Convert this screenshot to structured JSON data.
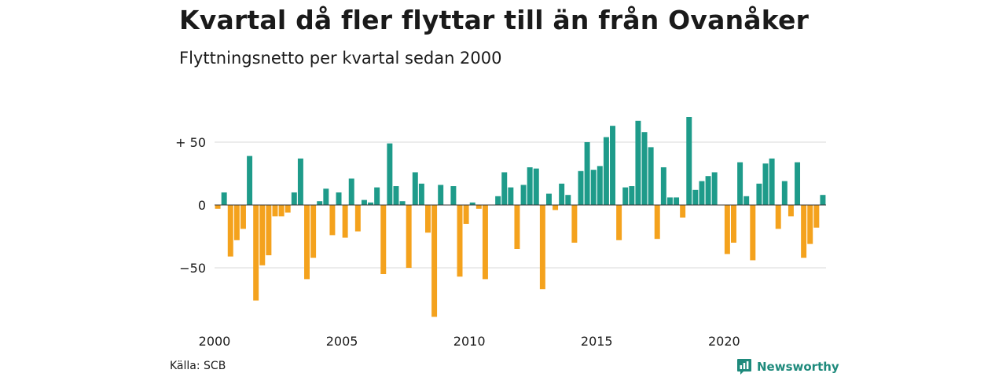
{
  "title": "Kvartal då fler flyttar till än från Ovanåker",
  "subtitle": "Flyttningsnetto per kvartal sedan 2000",
  "source": "Källa: SCB",
  "brand": "Newsworthy",
  "colors": {
    "positive": "#1e9b8a",
    "negative": "#f4a21d",
    "grid": "#d9d9d9",
    "brand": "#1e8a7c"
  },
  "chart_data": {
    "type": "bar",
    "start_year": 2000,
    "periods_per_year": 4,
    "values": [
      -3,
      10,
      -41,
      -28,
      -19,
      39,
      -76,
      -48,
      -40,
      -9,
      -9,
      -6,
      10,
      37,
      -59,
      -42,
      3,
      13,
      -24,
      10,
      -26,
      21,
      -21,
      4,
      2,
      14,
      -55,
      49,
      15,
      3,
      -50,
      26,
      17,
      -22,
      -89,
      16,
      0,
      15,
      -57,
      -15,
      2,
      -3,
      -59,
      0,
      7,
      26,
      14,
      -35,
      16,
      30,
      29,
      -67,
      9,
      -4,
      17,
      8,
      -30,
      27,
      50,
      28,
      31,
      54,
      63,
      -28,
      14,
      15,
      67,
      58,
      46,
      -27,
      30,
      6,
      6,
      -10,
      70,
      12,
      19,
      23,
      26,
      0,
      -39,
      -30,
      34,
      7,
      -44,
      17,
      33,
      37,
      -19,
      19,
      -9,
      34,
      -42,
      -31,
      -18,
      8
    ],
    "y_ticks": [
      50,
      0,
      -50
    ],
    "y_tick_labels": [
      "+ 50",
      "0",
      "−50"
    ],
    "x_tick_labels": [
      "2000",
      "2005",
      "2010",
      "2015",
      "2020"
    ],
    "ylim": [
      -92,
      72
    ],
    "grid": true
  }
}
